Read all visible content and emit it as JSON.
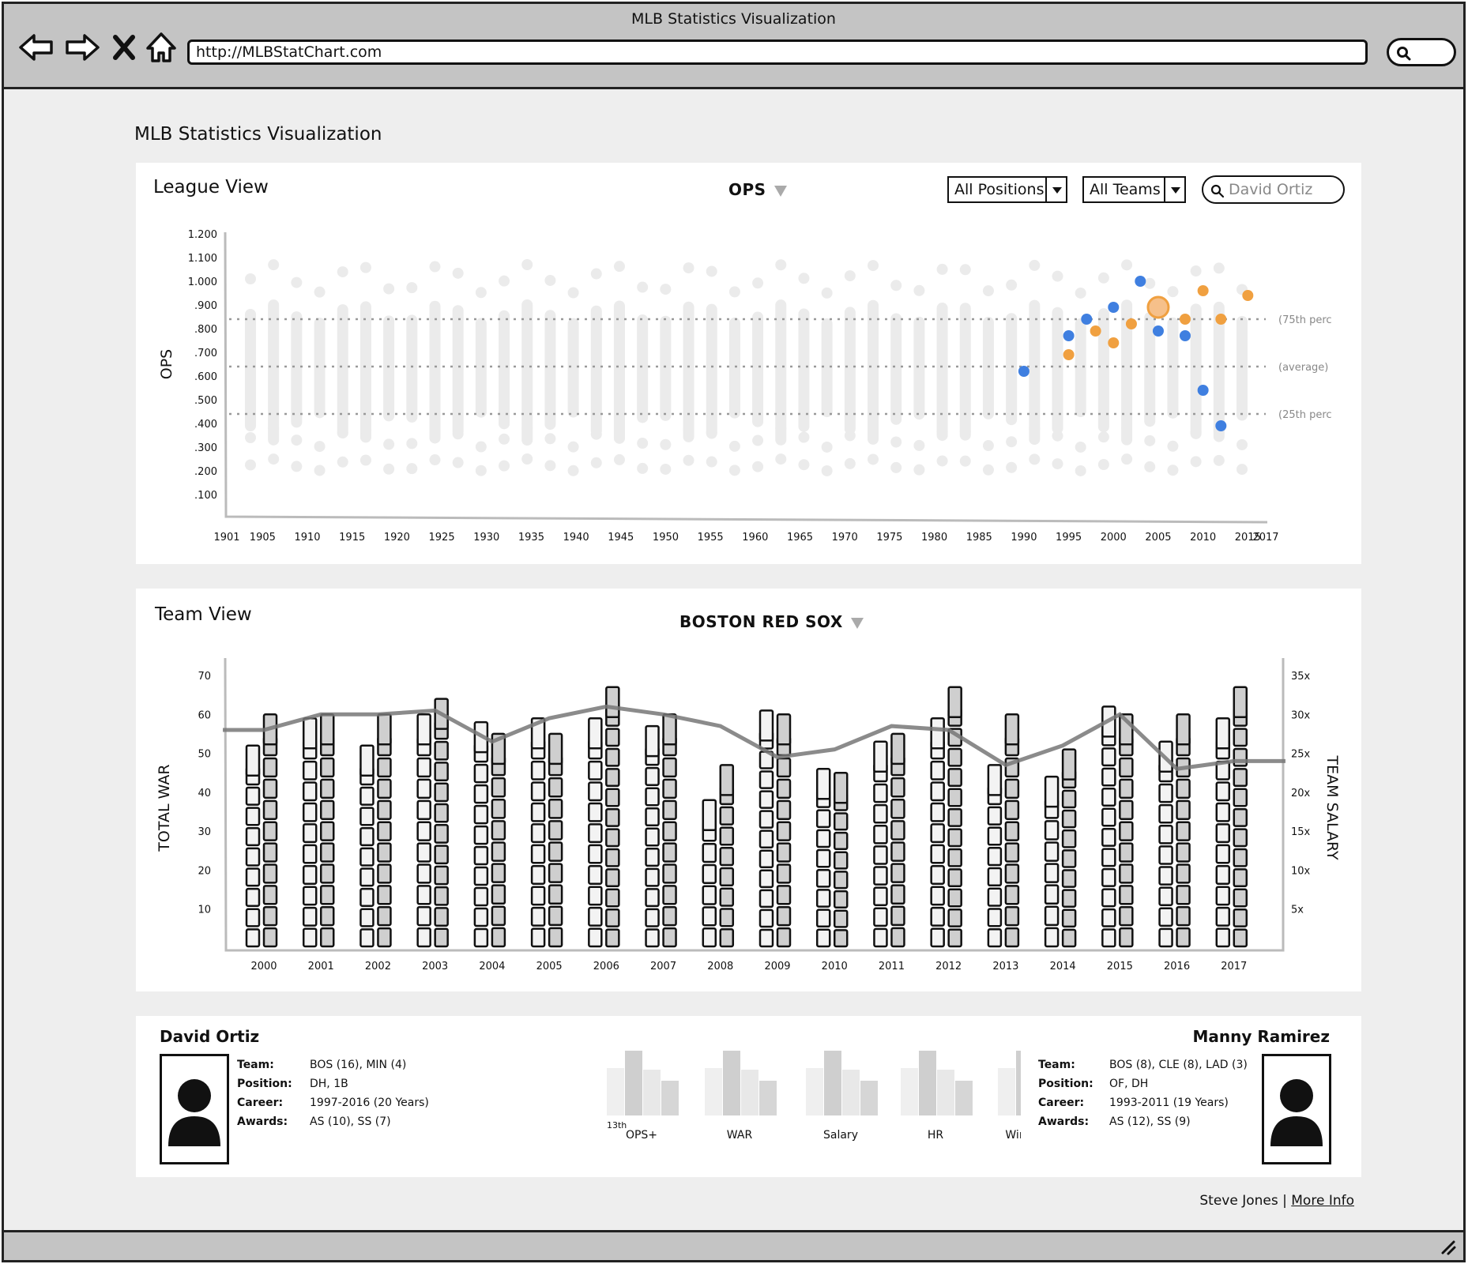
{
  "window": {
    "title": "MLB Statistics Visualization",
    "url": "http://MLBStatChart.com"
  },
  "page": {
    "title": "MLB Statistics Visualization"
  },
  "league_view": {
    "title": "League View",
    "metric": "OPS",
    "positions_filter": "All Positions",
    "teams_filter": "All Teams",
    "player_search": "David Ortiz",
    "reference_labels": [
      "(75th perc",
      "(average)",
      "(25th perc"
    ]
  },
  "team_view": {
    "title": "Team View",
    "team": "BOSTON RED SOX"
  },
  "player_left": {
    "name": "David Ortiz",
    "labels": [
      "Team:",
      "Position:",
      "Career:",
      "Awards:"
    ],
    "values": [
      "BOS (16), MIN (4)",
      "DH, 1B",
      "1997-2016 (20 Years)",
      "AS (10), SS (7)"
    ]
  },
  "player_right": {
    "name": "Manny Ramirez",
    "labels": [
      "Team:",
      "Position:",
      "Career:",
      "Awards:"
    ],
    "values": [
      "BOS (8), CLE (8), LAD (3)",
      "OF, DH",
      "1993-2011 (19 Years)",
      "AS (12), SS (9)"
    ]
  },
  "comparison": {
    "categories": [
      "OPS+",
      "WAR",
      "Salary",
      "HR",
      "Win Value"
    ],
    "rank_label": "13th"
  },
  "footer": {
    "author": "Steve Jones",
    "separator": "|",
    "link": "More Info"
  },
  "colors": {
    "blue": "#3f7fe0",
    "orange": "#f0a040",
    "dot": "#e8e8e8"
  },
  "chart_data": [
    {
      "type": "scatter",
      "title": "",
      "ylabel": "OPS",
      "xlabel": "",
      "yticks": [
        "1.200",
        "1.100",
        "1.000",
        ".900",
        ".800",
        ".700",
        ".600",
        ".500",
        ".400",
        ".300",
        ".200",
        ".100"
      ],
      "ylim": [
        0.1,
        1.2
      ],
      "xticks": [
        "1901",
        "1905",
        "1910",
        "1915",
        "1920",
        "1925",
        "1930",
        "1935",
        "1940",
        "1945",
        "1950",
        "1955",
        "1960",
        "1965",
        "1970",
        "1975",
        "1980",
        "1985",
        "1990",
        "1995",
        "2000",
        "2005",
        "2010",
        "2015",
        "2017"
      ],
      "xlim": [
        1901,
        2017
      ],
      "reference_lines": [
        {
          "label": "(75th perc",
          "y": 0.84
        },
        {
          "label": "(average)",
          "y": 0.64
        },
        {
          "label": "(25th perc",
          "y": 0.44
        }
      ],
      "series": [
        {
          "color": "#3f7fe0",
          "points": [
            [
              1990,
              0.62
            ],
            [
              1995,
              0.77
            ],
            [
              1997,
              0.84
            ],
            [
              2000,
              0.89
            ],
            [
              2003,
              1.0
            ],
            [
              2005,
              0.79
            ],
            [
              2008,
              0.77
            ],
            [
              2010,
              0.54
            ],
            [
              2012,
              0.39
            ]
          ]
        },
        {
          "color": "#f0a040",
          "points": [
            [
              1995,
              0.69
            ],
            [
              1998,
              0.79
            ],
            [
              2000,
              0.74
            ],
            [
              2002,
              0.82
            ],
            [
              2005,
              0.89
            ],
            [
              2008,
              0.84
            ],
            [
              2010,
              0.96
            ],
            [
              2012,
              0.84
            ],
            [
              2015,
              0.94
            ]
          ]
        }
      ]
    },
    {
      "type": "bar",
      "title": "",
      "ylabel": "TOTAL WAR",
      "y2label": "TEAM SALARY",
      "categories": [
        "2000",
        "2001",
        "2002",
        "2003",
        "2004",
        "2005",
        "2006",
        "2007",
        "2008",
        "2009",
        "2010",
        "2011",
        "2012",
        "2013",
        "2014",
        "2015",
        "2016",
        "2017"
      ],
      "yticks": [
        "70",
        "60",
        "50",
        "40",
        "30",
        "20",
        "10"
      ],
      "y2ticks": [
        "35x",
        "30x",
        "25x",
        "20x",
        "15x",
        "10x",
        "5x"
      ],
      "ylim": [
        0,
        70
      ],
      "series": [
        {
          "name": "bar-a",
          "values": [
            52,
            59,
            52,
            60,
            58,
            59,
            59,
            57,
            38,
            61,
            46,
            53,
            59,
            47,
            44,
            62,
            53,
            59
          ]
        },
        {
          "name": "bar-b",
          "values": [
            60,
            60,
            60,
            64,
            55,
            55,
            67,
            60,
            47,
            60,
            45,
            55,
            67,
            60,
            51,
            60,
            60,
            67
          ]
        }
      ],
      "line": [
        56,
        60,
        60,
        61,
        53,
        59,
        62,
        60,
        57,
        49,
        51,
        57,
        56,
        47,
        52,
        60,
        46,
        48
      ]
    }
  ]
}
